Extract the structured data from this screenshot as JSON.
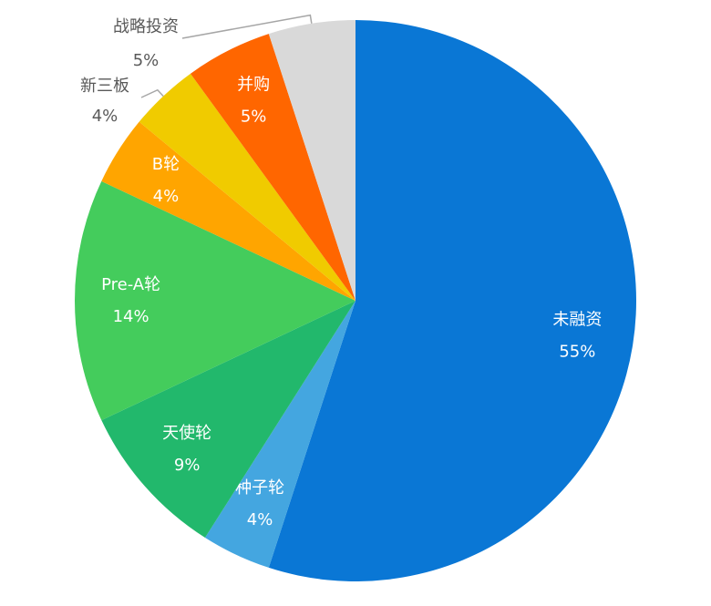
{
  "chart_data": {
    "type": "pie",
    "categories": [
      "未融资",
      "种子轮",
      "天使轮",
      "Pre-A轮",
      "B轮",
      "新三板",
      "并购",
      "战略投资"
    ],
    "values": [
      55,
      4,
      9,
      14,
      4,
      4,
      5,
      5
    ],
    "value_labels": [
      "55%",
      "4%",
      "9%",
      "14%",
      "4%",
      "4%",
      "5%",
      "5%"
    ],
    "colors": [
      "#0a77d5",
      "#44a6e0",
      "#22b86c",
      "#44cc5c",
      "#ffa500",
      "#f0cb00",
      "#ff6600",
      "#d9d9d9"
    ]
  }
}
